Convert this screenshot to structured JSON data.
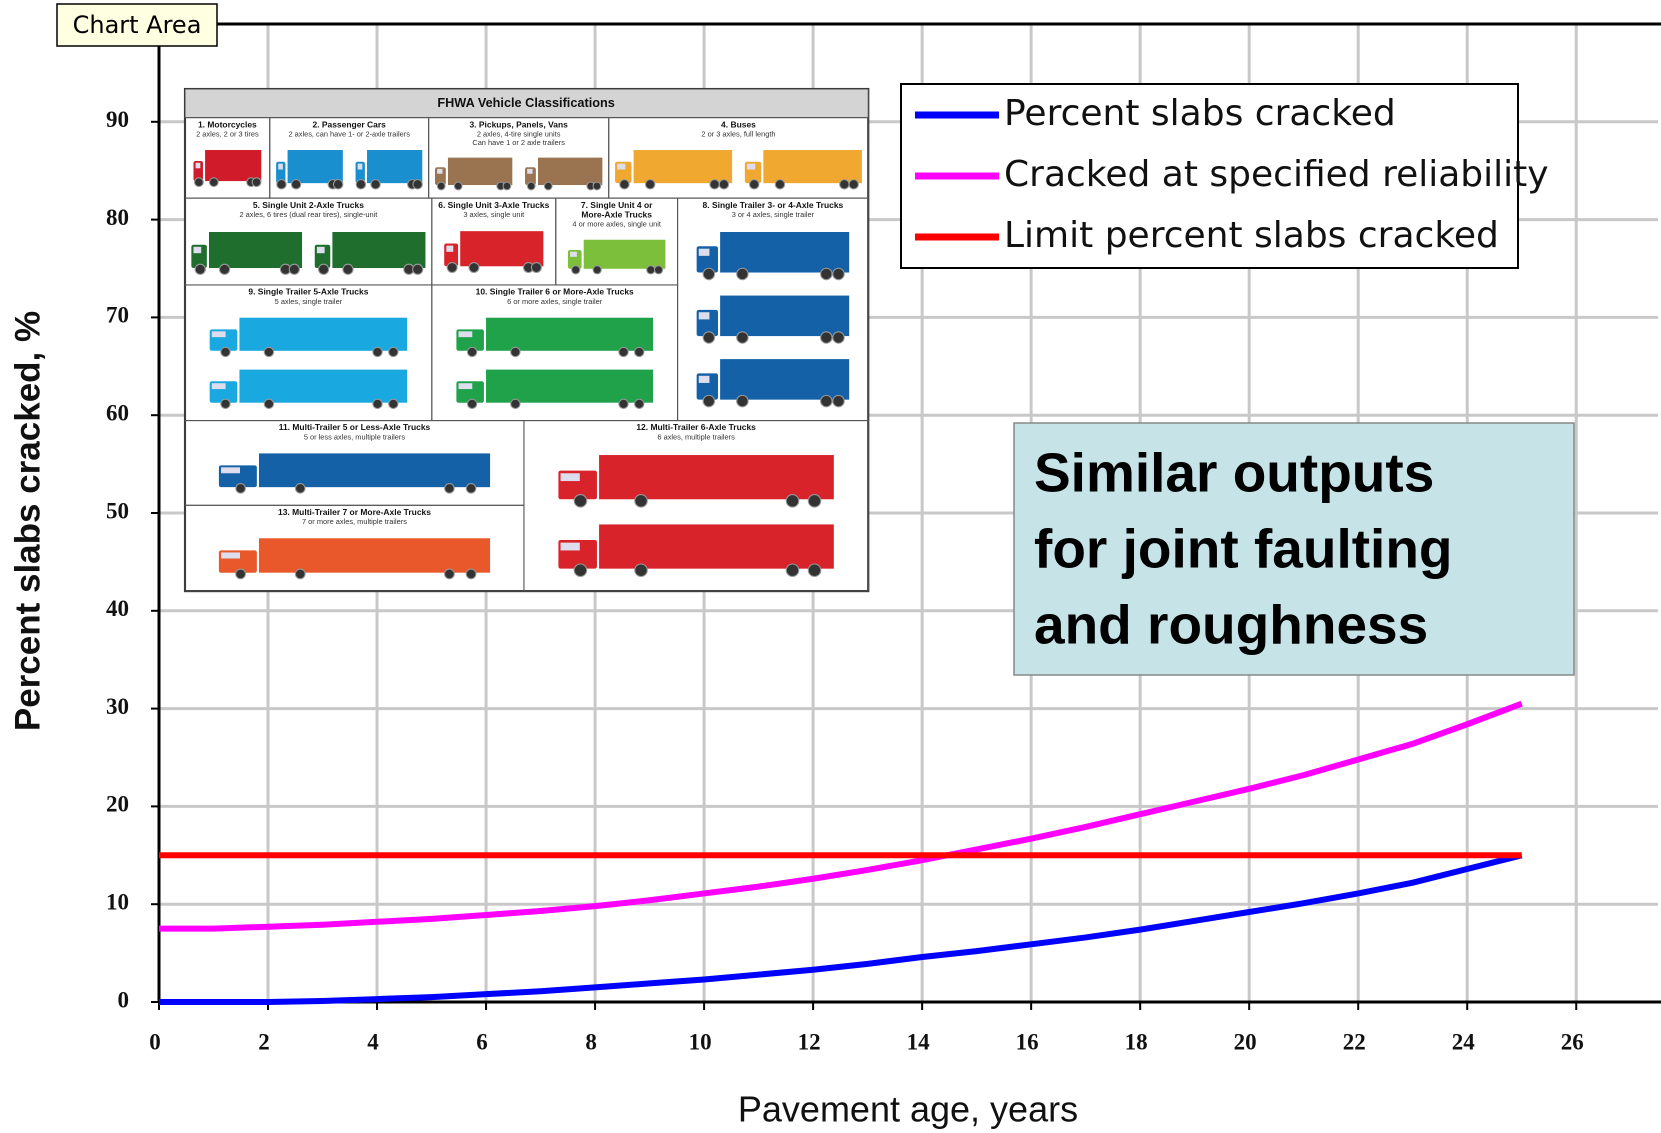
{
  "tooltip": "Chart Area",
  "chart_data": {
    "type": "line",
    "x_label": "Pavement age, years",
    "y_label": "Percent slabs cracked, %",
    "x": [
      0,
      1,
      2,
      3,
      4,
      5,
      6,
      7,
      8,
      9,
      10,
      11,
      12,
      13,
      14,
      15,
      16,
      17,
      18,
      19,
      20,
      21,
      22,
      23,
      24,
      25
    ],
    "series": [
      {
        "name": "Percent slabs cracked",
        "color": "#0000ff",
        "values": [
          0,
          0,
          0,
          0.1,
          0.3,
          0.5,
          0.8,
          1.1,
          1.5,
          1.9,
          2.3,
          2.8,
          3.3,
          3.9,
          4.6,
          5.2,
          5.9,
          6.6,
          7.4,
          8.3,
          9.2,
          10.1,
          11.1,
          12.2,
          13.6,
          15
        ]
      },
      {
        "name": "Cracked at specified reliability",
        "color": "#ff00ff",
        "values": [
          7.5,
          7.5,
          7.7,
          7.9,
          8.2,
          8.5,
          8.9,
          9.3,
          9.8,
          10.4,
          11.1,
          11.8,
          12.6,
          13.5,
          14.5,
          15.6,
          16.7,
          17.9,
          19.2,
          20.5,
          21.8,
          23.2,
          24.8,
          26.4,
          28.4,
          30.5
        ]
      },
      {
        "name": "Limit percent slabs cracked",
        "color": "#ff0000",
        "values": [
          15,
          15,
          15,
          15,
          15,
          15,
          15,
          15,
          15,
          15,
          15,
          15,
          15,
          15,
          15,
          15,
          15,
          15,
          15,
          15,
          15,
          15,
          15,
          15,
          15,
          15
        ]
      }
    ],
    "xlim": [
      0,
      27.5
    ],
    "xticks": [
      0,
      2,
      4,
      6,
      8,
      10,
      12,
      14,
      16,
      18,
      20,
      22,
      24,
      26
    ],
    "ylim": [
      0,
      100
    ],
    "yticks": [
      0,
      10,
      20,
      30,
      40,
      50,
      60,
      70,
      80,
      90
    ],
    "grid": true,
    "legend": "upper right",
    "annotation": [
      "Similar outputs",
      "for joint faulting",
      "and roughness"
    ]
  },
  "inset": {
    "title": "FHWA Vehicle Classifications",
    "cells": [
      {
        "title": [
          "1. Motorcycles"
        ],
        "note": [
          "2 axles, 2 or 3 tires"
        ]
      },
      {
        "title": [
          "2. Passenger Cars"
        ],
        "note": [
          "2 axles, can have 1- or 2-axle trailers"
        ]
      },
      {
        "title": [
          "3. Pickups, Panels, Vans"
        ],
        "note": [
          "2 axles, 4-tire single units",
          "Can have 1 or 2 axle trailers"
        ]
      },
      {
        "title": [
          "4. Buses"
        ],
        "note": [
          "2 or 3 axles, full length"
        ]
      },
      {
        "title": [
          "5. Single Unit 2-Axle Trucks"
        ],
        "note": [
          "2 axles, 6 tires (dual rear tires), single-unit"
        ]
      },
      {
        "title": [
          "6. Single Unit 3-Axle Trucks"
        ],
        "note": [
          "3 axles, single unit"
        ]
      },
      {
        "title": [
          "7. Single Unit 4 or",
          "More-Axle Trucks"
        ],
        "note": [
          "4 or more axles, single unit"
        ]
      },
      {
        "title": [
          "8. Single Trailer 3- or 4-Axle Trucks"
        ],
        "note": [
          "3 or 4 axles, single trailer"
        ]
      },
      {
        "title": [
          "9. Single Trailer 5-Axle Trucks"
        ],
        "note": [
          "5 axles, single trailer"
        ]
      },
      {
        "title": [
          "10. Single Trailer 6 or More-Axle Trucks"
        ],
        "note": [
          "6 or more axles, single trailer"
        ]
      },
      {
        "title": [
          "11. Multi-Trailer 5 or Less-Axle Trucks"
        ],
        "note": [
          "5 or less axles, multiple trailers"
        ]
      },
      {
        "title": [
          "12. Multi-Trailer 6-Axle Trucks"
        ],
        "note": [
          "6 axles, multiple trailers"
        ]
      },
      {
        "title": [
          "13. Multi-Trailer 7 or More-Axle Trucks"
        ],
        "note": [
          "7 or more axles, multiple trailers"
        ]
      }
    ]
  }
}
